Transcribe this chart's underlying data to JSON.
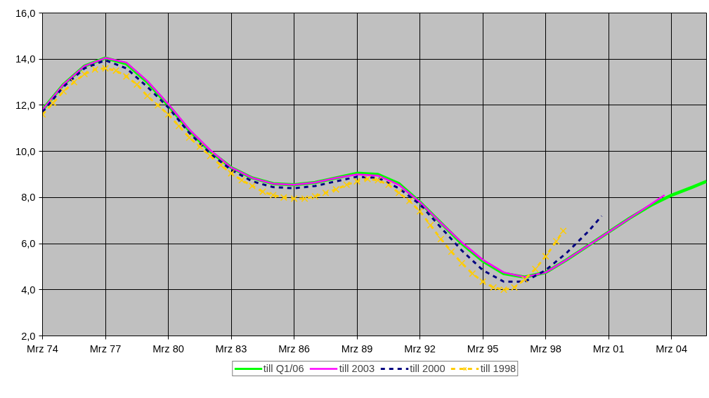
{
  "chart_data": {
    "type": "line",
    "xlim": [
      "1974-03",
      "2005-11"
    ],
    "ylim": [
      2,
      16
    ],
    "xticks": [
      {
        "value": "1974-03",
        "label": "Mrz 74"
      },
      {
        "value": "1977-03",
        "label": "Mrz 77"
      },
      {
        "value": "1980-03",
        "label": "Mrz 80"
      },
      {
        "value": "1983-03",
        "label": "Mrz 83"
      },
      {
        "value": "1986-03",
        "label": "Mrz 86"
      },
      {
        "value": "1989-03",
        "label": "Mrz 89"
      },
      {
        "value": "1992-03",
        "label": "Mrz 92"
      },
      {
        "value": "1995-03",
        "label": "Mrz 95"
      },
      {
        "value": "1998-03",
        "label": "Mrz 98"
      },
      {
        "value": "2001-03",
        "label": "Mrz 01"
      },
      {
        "value": "2004-03",
        "label": "Mrz 04"
      }
    ],
    "yticks": [
      {
        "value": 2,
        "label": "2,0"
      },
      {
        "value": 4,
        "label": "4,0"
      },
      {
        "value": 6,
        "label": "6,0"
      },
      {
        "value": 8,
        "label": "8,0"
      },
      {
        "value": 10,
        "label": "10,0"
      },
      {
        "value": 12,
        "label": "12,0"
      },
      {
        "value": 14,
        "label": "14,0"
      },
      {
        "value": 16,
        "label": "16,0"
      }
    ],
    "grid": true,
    "legend": "bottom",
    "series": [
      {
        "name": "till Q1/06",
        "color": "#00ff00",
        "line_style": "solid",
        "marker": "none",
        "x": [
          "1974-03",
          "1975-03",
          "1976-03",
          "1977-03",
          "1978-03",
          "1979-03",
          "1980-03",
          "1981-03",
          "1982-03",
          "1983-03",
          "1984-03",
          "1985-03",
          "1986-03",
          "1987-03",
          "1988-03",
          "1989-03",
          "1990-03",
          "1991-03",
          "1992-03",
          "1993-03",
          "1994-03",
          "1995-03",
          "1996-03",
          "1997-03",
          "1998-03",
          "1999-03",
          "2000-03",
          "2001-03",
          "2002-03",
          "2003-03",
          "2004-03",
          "2005-03",
          "2005-11"
        ],
        "values": [
          11.8,
          12.9,
          13.7,
          14.05,
          13.8,
          13.0,
          12.0,
          10.9,
          10.0,
          9.3,
          8.85,
          8.6,
          8.55,
          8.65,
          8.85,
          9.05,
          9.0,
          8.6,
          7.8,
          6.9,
          6.0,
          5.25,
          4.7,
          4.55,
          4.75,
          5.3,
          5.9,
          6.5,
          7.1,
          7.65,
          8.1,
          8.45,
          8.7
        ]
      },
      {
        "name": "till 2003",
        "color": "#ff00ff",
        "line_style": "solid",
        "marker": "none",
        "x": [
          "1974-03",
          "1975-03",
          "1976-03",
          "1977-03",
          "1978-03",
          "1979-03",
          "1980-03",
          "1981-03",
          "1982-03",
          "1983-03",
          "1984-03",
          "1985-03",
          "1986-03",
          "1987-03",
          "1988-03",
          "1989-03",
          "1990-03",
          "1991-03",
          "1992-03",
          "1993-03",
          "1994-03",
          "1995-03",
          "1996-03",
          "1997-03",
          "1998-03",
          "1999-03",
          "2000-03",
          "2001-03",
          "2002-03",
          "2003-03",
          "2003-11"
        ],
        "values": [
          11.8,
          12.9,
          13.7,
          14.05,
          13.85,
          13.05,
          12.05,
          10.95,
          10.05,
          9.3,
          8.85,
          8.6,
          8.55,
          8.65,
          8.85,
          9.0,
          8.95,
          8.55,
          7.8,
          6.9,
          6.05,
          5.3,
          4.75,
          4.55,
          4.75,
          5.3,
          5.9,
          6.5,
          7.1,
          7.7,
          8.1
        ]
      },
      {
        "name": "till 2000",
        "color": "#000080",
        "line_style": "dashed",
        "marker": "none",
        "x": [
          "1974-03",
          "1975-03",
          "1976-03",
          "1977-03",
          "1978-03",
          "1979-03",
          "1980-03",
          "1981-03",
          "1982-03",
          "1983-03",
          "1984-03",
          "1985-03",
          "1986-03",
          "1987-03",
          "1988-03",
          "1989-03",
          "1990-03",
          "1991-03",
          "1992-03",
          "1993-03",
          "1994-03",
          "1995-03",
          "1996-03",
          "1997-03",
          "1998-03",
          "1999-03",
          "2000-03",
          "2000-11"
        ],
        "values": [
          11.7,
          12.8,
          13.6,
          13.95,
          13.6,
          12.8,
          11.9,
          10.8,
          9.9,
          9.2,
          8.7,
          8.45,
          8.4,
          8.5,
          8.7,
          8.9,
          8.85,
          8.4,
          7.7,
          6.7,
          5.7,
          4.85,
          4.35,
          4.35,
          4.85,
          5.6,
          6.5,
          7.2
        ]
      },
      {
        "name": "till 1998",
        "color": "#ffcc00",
        "line_style": "dashed",
        "marker": "cross",
        "x": [
          "1974-03",
          "1974-09",
          "1975-03",
          "1975-09",
          "1976-03",
          "1976-09",
          "1977-03",
          "1977-09",
          "1978-03",
          "1978-09",
          "1979-03",
          "1979-09",
          "1980-03",
          "1980-09",
          "1981-03",
          "1981-09",
          "1982-03",
          "1982-09",
          "1983-03",
          "1983-09",
          "1984-03",
          "1984-09",
          "1985-03",
          "1985-09",
          "1986-03",
          "1986-09",
          "1987-03",
          "1987-09",
          "1988-03",
          "1988-09",
          "1989-03",
          "1989-09",
          "1990-03",
          "1990-09",
          "1991-03",
          "1991-09",
          "1992-03",
          "1992-09",
          "1993-03",
          "1993-09",
          "1994-03",
          "1994-09",
          "1995-03",
          "1995-09",
          "1996-03",
          "1996-09",
          "1997-03",
          "1997-09",
          "1998-03",
          "1998-09",
          "1999-01"
        ],
        "values": [
          11.6,
          12.1,
          12.6,
          13.0,
          13.35,
          13.55,
          13.6,
          13.5,
          13.25,
          12.9,
          12.4,
          12.0,
          11.6,
          11.1,
          10.6,
          10.2,
          9.8,
          9.4,
          9.05,
          8.75,
          8.5,
          8.25,
          8.1,
          8.0,
          7.95,
          7.95,
          8.05,
          8.2,
          8.35,
          8.55,
          8.7,
          8.8,
          8.75,
          8.55,
          8.2,
          7.85,
          7.4,
          6.8,
          6.2,
          5.65,
          5.15,
          4.7,
          4.35,
          4.1,
          4.0,
          4.1,
          4.45,
          4.9,
          5.45,
          6.1,
          6.55
        ]
      }
    ]
  }
}
